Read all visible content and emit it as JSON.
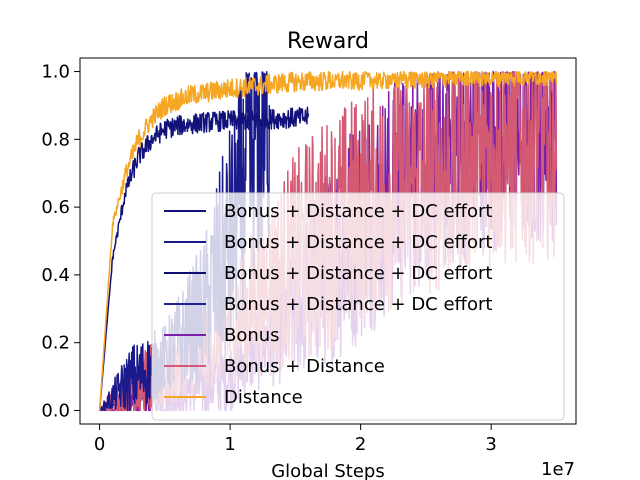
{
  "chart_data": {
    "type": "line",
    "title": "Reward",
    "xlabel": "Global Steps",
    "ylabel": "",
    "x_scale_note": "1e7",
    "xlim": [
      -0.15,
      3.65
    ],
    "ylim": [
      -0.04,
      1.04
    ],
    "x_ticks": [
      0,
      1,
      2,
      3
    ],
    "x_tick_labels": [
      "0",
      "1",
      "2",
      "3"
    ],
    "y_ticks": [
      0.0,
      0.2,
      0.4,
      0.6,
      0.8,
      1.0
    ],
    "y_tick_labels": [
      "0.0",
      "0.2",
      "0.4",
      "0.6",
      "0.8",
      "1.0"
    ],
    "grid": false,
    "legend_position": "lower-right",
    "series": [
      {
        "name": "Bonus + Distance + DC effort",
        "color": "#12127a",
        "noise": 0.03,
        "x": [
          0,
          0.1,
          0.2,
          0.3,
          0.4,
          0.5,
          0.6,
          0.8,
          1.0,
          1.3,
          1.6
        ],
        "values": [
          0,
          0.45,
          0.65,
          0.75,
          0.8,
          0.83,
          0.84,
          0.85,
          0.855,
          0.86,
          0.865
        ]
      },
      {
        "name": "Bonus + Distance + DC effort",
        "color": "#1a1a8c",
        "noise": 0.35,
        "x": [
          0,
          0.2,
          0.5,
          0.8,
          1.0,
          1.1,
          1.2,
          1.3
        ],
        "values": [
          0,
          0.08,
          0.15,
          0.3,
          0.5,
          0.65,
          0.75,
          0.8
        ]
      },
      {
        "name": "Bonus + Distance + DC effort",
        "color": "#0d0d6e",
        "noise": 0.05,
        "x": [
          0,
          0.2,
          0.4,
          0.5
        ],
        "values": [
          0,
          0.06,
          0.12,
          0.15
        ]
      },
      {
        "name": "Bonus + Distance + DC effort",
        "color": "#202096",
        "noise": 0.03,
        "x": [
          0,
          0.2,
          0.4
        ],
        "values": [
          0,
          0.03,
          0.05
        ]
      },
      {
        "name": "Bonus",
        "color": "#7a1fa8",
        "noise": 0.35,
        "x": [
          0,
          0.5,
          1.0,
          1.5,
          2.0,
          2.5,
          3.0,
          3.5
        ],
        "values": [
          0,
          0.04,
          0.1,
          0.3,
          0.55,
          0.72,
          0.82,
          0.85
        ]
      },
      {
        "name": "Bonus + Distance",
        "color": "#d45a74",
        "noise": 0.35,
        "x": [
          0,
          0.3,
          0.6,
          1.0,
          1.5,
          2.0,
          2.5,
          3.0,
          3.5
        ],
        "values": [
          0,
          0.08,
          0.12,
          0.25,
          0.45,
          0.6,
          0.68,
          0.75,
          0.8
        ]
      },
      {
        "name": "Distance",
        "color": "#f5a623",
        "noise": 0.03,
        "x": [
          0,
          0.1,
          0.2,
          0.3,
          0.4,
          0.5,
          0.7,
          1.0,
          1.5,
          2.0,
          2.5,
          3.0,
          3.5
        ],
        "values": [
          0,
          0.55,
          0.7,
          0.8,
          0.86,
          0.9,
          0.93,
          0.95,
          0.97,
          0.975,
          0.98,
          0.985,
          0.99
        ]
      }
    ]
  }
}
